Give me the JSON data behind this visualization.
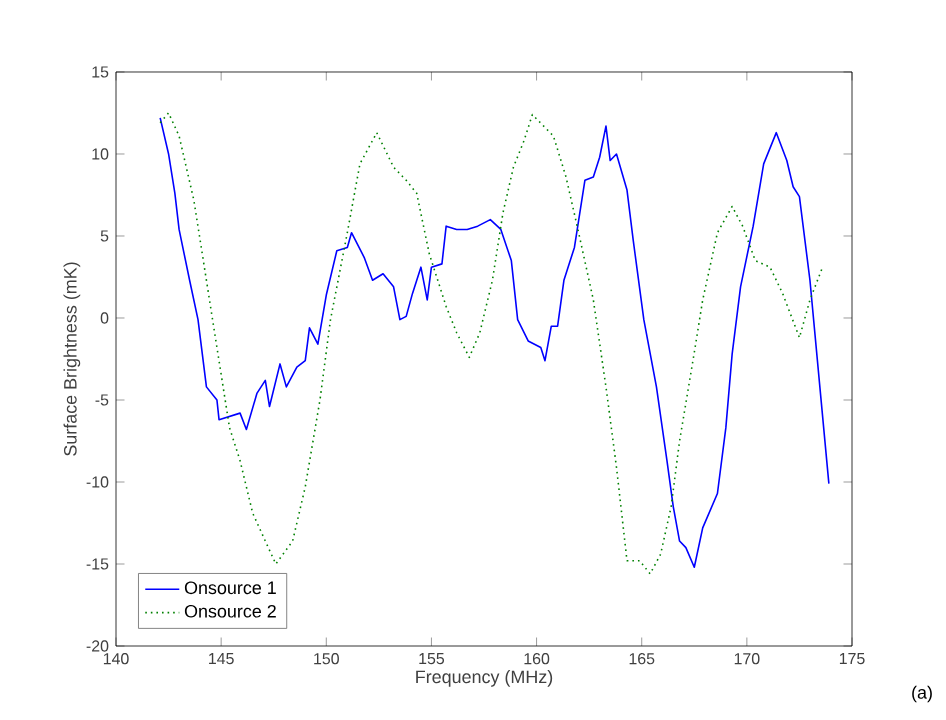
{
  "chart_data": {
    "type": "line",
    "xlabel": "Frequency (MHz)",
    "ylabel": "Surface Brightness (mK)",
    "xlim": [
      140,
      175
    ],
    "xticks": [
      140,
      145,
      150,
      155,
      160,
      165,
      170,
      175
    ],
    "ylim": [
      -20,
      15
    ],
    "yticks": [
      -20,
      -15,
      -10,
      -5,
      0,
      5,
      10,
      15
    ],
    "grid": false,
    "legend": "bottom left",
    "marker": "none",
    "annotations": [
      "(a)"
    ],
    "series": [
      {
        "name": "Onsource 1",
        "color": "#0000ff",
        "line_style": "solid",
        "x": [
          142.1,
          142.5,
          142.8,
          143.0,
          143.5,
          143.9,
          144.3,
          144.8,
          144.9,
          145.4,
          145.9,
          146.2,
          146.7,
          147.1,
          147.3,
          147.8,
          148.1,
          148.6,
          149.0,
          149.2,
          149.6,
          150.0,
          150.5,
          151.0,
          151.2,
          151.8,
          152.2,
          152.7,
          153.2,
          153.5,
          153.8,
          154.1,
          154.5,
          154.8,
          155.0,
          155.5,
          155.7,
          156.2,
          156.7,
          157.2,
          157.8,
          158.3,
          158.8,
          159.1,
          159.6,
          160.2,
          160.4,
          160.7,
          161.0,
          161.3,
          161.8,
          162.3,
          162.7,
          163.0,
          163.3,
          163.5,
          163.8,
          164.3,
          164.6,
          165.1,
          165.7,
          166.2,
          166.5,
          166.8,
          167.1,
          167.5,
          167.9,
          168.6,
          169.0,
          169.3,
          169.7,
          170.3,
          170.8,
          171.4,
          171.9,
          172.2,
          172.5,
          173.0,
          173.5,
          173.9
        ],
        "values": [
          12.2,
          10.0,
          7.6,
          5.4,
          2.3,
          -0.1,
          -4.2,
          -5.0,
          -6.2,
          -6.0,
          -5.8,
          -6.8,
          -4.6,
          -3.8,
          -5.4,
          -2.8,
          -4.2,
          -3.0,
          -2.6,
          -0.6,
          -1.6,
          1.4,
          4.1,
          4.3,
          5.2,
          3.7,
          2.3,
          2.7,
          1.9,
          -0.1,
          0.1,
          1.5,
          3.1,
          1.1,
          3.1,
          3.3,
          5.6,
          5.4,
          5.4,
          5.6,
          6.0,
          5.4,
          3.5,
          -0.1,
          -1.4,
          -1.8,
          -2.6,
          -0.5,
          -0.5,
          2.3,
          4.3,
          8.4,
          8.6,
          9.8,
          11.7,
          9.6,
          10.0,
          7.8,
          4.7,
          -0.1,
          -4.2,
          -8.7,
          -11.5,
          -13.6,
          -14.0,
          -15.2,
          -12.8,
          -10.7,
          -6.7,
          -2.2,
          1.9,
          5.6,
          9.4,
          11.3,
          9.6,
          8.0,
          7.4,
          2.3,
          -4.6,
          -10.1
        ]
      },
      {
        "name": "Onsource 2",
        "color": "#008000",
        "line_style": "dotted",
        "x": [
          142.1,
          142.5,
          143.0,
          143.7,
          144.3,
          144.8,
          145.4,
          145.9,
          146.5,
          147.1,
          147.6,
          148.4,
          149.0,
          149.7,
          150.2,
          151.0,
          151.6,
          152.4,
          153.2,
          153.8,
          154.3,
          154.9,
          155.7,
          156.2,
          156.8,
          157.3,
          157.9,
          158.4,
          158.9,
          159.4,
          159.8,
          160.8,
          161.4,
          162.0,
          162.7,
          163.3,
          163.8,
          164.3,
          164.9,
          165.4,
          165.9,
          166.4,
          166.8,
          167.5,
          167.9,
          168.6,
          169.3,
          169.8,
          170.4,
          171.1,
          171.7,
          172.5,
          173.0,
          173.6
        ],
        "values": [
          11.9,
          12.5,
          11.1,
          7.2,
          2.3,
          -1.8,
          -6.7,
          -8.7,
          -11.9,
          -13.6,
          -15.0,
          -13.6,
          -10.3,
          -5.0,
          -0.1,
          5.2,
          9.4,
          11.3,
          9.2,
          8.4,
          7.6,
          3.9,
          0.7,
          -0.9,
          -2.4,
          -0.9,
          2.3,
          6.4,
          9.2,
          10.8,
          12.4,
          11.1,
          8.6,
          5.2,
          1.1,
          -4.2,
          -9.1,
          -14.8,
          -14.8,
          -15.6,
          -14.4,
          -11.5,
          -7.5,
          -2.1,
          1.1,
          5.2,
          6.8,
          5.6,
          3.5,
          3.1,
          1.5,
          -1.2,
          1.1,
          3.1
        ]
      }
    ]
  }
}
